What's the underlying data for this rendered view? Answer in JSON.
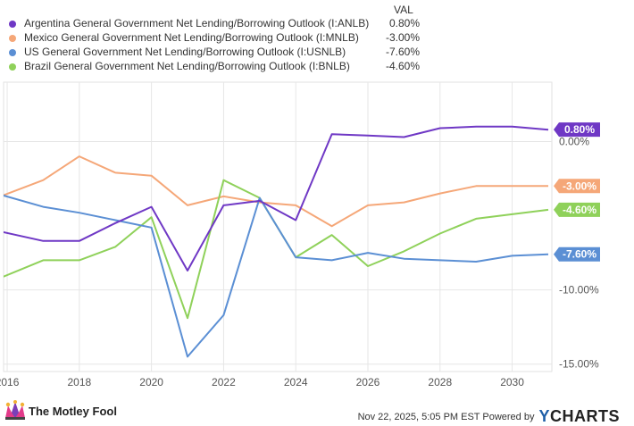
{
  "legend": {
    "header": "VAL",
    "items": [
      {
        "name": "Argentina General Government Net Lending/Borrowing Outlook (I:ANLB)",
        "value": "0.80%",
        "color": "#6f38c5"
      },
      {
        "name": "Mexico General Government Net Lending/Borrowing Outlook (I:MNLB)",
        "value": "-3.00%",
        "color": "#f5a778"
      },
      {
        "name": "US General Government Net Lending/Borrowing Outlook (I:USNLB)",
        "value": "-7.60%",
        "color": "#5b8fd4"
      },
      {
        "name": "Brazil General Government Net Lending/Borrowing Outlook (I:BNLB)",
        "value": "-4.60%",
        "color": "#8fd15a"
      }
    ]
  },
  "chart_data": {
    "type": "line",
    "x": [
      2015.7,
      2017,
      2018,
      2019,
      2020,
      2021,
      2022,
      2023,
      2024,
      2025,
      2026,
      2027,
      2028,
      2029,
      2030,
      2031
    ],
    "xlim": [
      2015.9,
      2031.1
    ],
    "ylim": [
      -15.5,
      4
    ],
    "x_ticks": [
      "2016",
      "2018",
      "2020",
      "2022",
      "2024",
      "2026",
      "2028",
      "2030"
    ],
    "y_tick_labels": [
      "0.00%",
      "-10.00%",
      "-15.00%"
    ],
    "y_tick_values": [
      0,
      -10,
      -15
    ],
    "series": [
      {
        "name": "Argentina General Government Net Lending/Borrowing Outlook (I:ANLB)",
        "color": "#6f38c5",
        "end_label": "0.80%",
        "values": [
          -6.0,
          -6.7,
          -6.7,
          -5.5,
          -4.4,
          -8.7,
          -4.3,
          -4.0,
          -5.3,
          0.5,
          0.4,
          0.3,
          0.9,
          1.0,
          1.0,
          0.8
        ]
      },
      {
        "name": "Mexico General Government Net Lending/Borrowing Outlook (I:MNLB)",
        "color": "#f5a778",
        "end_label": "-3.00%",
        "values": [
          -3.8,
          -2.6,
          -1.0,
          -2.1,
          -2.3,
          -4.3,
          -3.7,
          -4.1,
          -4.3,
          -5.7,
          -4.3,
          -4.1,
          -3.5,
          -3.0,
          -3.0,
          -3.0
        ]
      },
      {
        "name": "US General Government Net Lending/Borrowing Outlook (I:USNLB)",
        "color": "#5b8fd4",
        "end_label": "-7.60%",
        "values": [
          -3.5,
          -4.4,
          -4.8,
          -5.3,
          -5.8,
          -14.5,
          -11.7,
          -3.8,
          -7.8,
          -8.0,
          -7.5,
          -7.9,
          -8.0,
          -8.1,
          -7.7,
          -7.6
        ]
      },
      {
        "name": "Brazil General Government Net Lending/Borrowing Outlook (I:BNLB)",
        "color": "#8fd15a",
        "end_label": "-4.60%",
        "values": [
          -9.3,
          -8.0,
          -8.0,
          -7.1,
          -5.1,
          -11.9,
          -2.6,
          -3.8,
          -7.8,
          -6.3,
          -8.4,
          -7.4,
          -6.2,
          -5.2,
          -4.9,
          -4.6
        ]
      }
    ]
  },
  "footer": {
    "logo_text": "The Motley Fool",
    "timestamp": "Nov 22, 2025, 5:05 PM EST Powered by",
    "brand_y": "Y",
    "brand_rest": "CHARTS"
  }
}
